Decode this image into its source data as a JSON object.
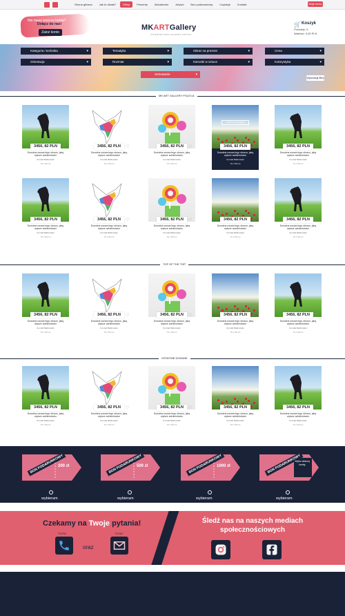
{
  "nav": {
    "items": [
      "Strona główna",
      "Jak to działa?",
      "Sklep",
      "Prezenty",
      "Aktualności",
      "Artyści",
      "Bon podarunkowy",
      "Licytacje",
      "Kontakt"
    ],
    "active_index": 2,
    "login_label": "Moje konto"
  },
  "header": {
    "promo_text": "Nie masz jeszcze konta?",
    "promo_button": "Dołącz do nas!",
    "promo_button_small": "Zaloż konto",
    "logo_main": "MK",
    "logo_accent": "ART",
    "logo_end": "Gallery",
    "logo_sub": "INTERNETOWA GALERIA SZTUKI",
    "cart_title": "Koszyk",
    "cart_items": "Produkty: 0",
    "cart_value": "Wartość: 0,00 PLN"
  },
  "filters": {
    "row1": [
      "Kategoria / technika",
      "Tematyka",
      "Obraz na prezent",
      "Cena"
    ],
    "row2": [
      "Orientacja",
      "Rozmiar",
      "Kierunki w sztuce",
      "Kolorystyka"
    ],
    "sort_label": "Sortowanie",
    "apply_label": "Wyszukaj filtry"
  },
  "sections": {
    "s1": "MK ART GALLERY POLECA",
    "s2": "TOP OF THE TOP",
    "s3": "OSTATNIE DODANE"
  },
  "product": {
    "price": "3456, 82 PLN",
    "desc": "Dowolna nazwa tego obrazu, jaką wpisze administrator",
    "author": "Konrad Malinowski",
    "dims": "70 x 50 cm",
    "hover_label": "zobacz szczegóły"
  },
  "vouchers": {
    "label": "BON PODARUNKOWY",
    "amounts": [
      "200 zł",
      "500 zł",
      "1000 zł"
    ],
    "other": "Wpisz własną kwotę",
    "choose": "wybieram"
  },
  "contact": {
    "title_pre": "Czekamy na ",
    "title_em": "Twoje",
    "title_post": " pytania!",
    "tutaj": "TUTAJ",
    "oraz": "oraz",
    "social_title": "Śledź nas na naszych mediach społecznościowych"
  },
  "colors": {
    "navy": "#1a2238",
    "accent": "#e04a5a",
    "coral": "#e0606f"
  }
}
